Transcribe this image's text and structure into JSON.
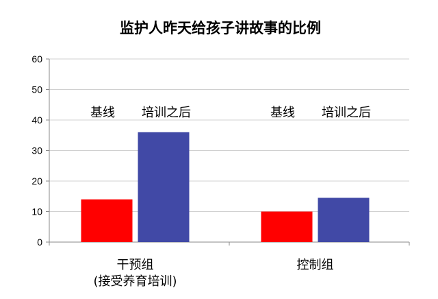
{
  "chart_data": {
    "type": "bar",
    "title": "监护人昨天给孩子讲故事的比例",
    "categories": [
      {
        "line1": "干预组",
        "line2": "(接受养育培训)"
      },
      {
        "line1": "控制组",
        "line2": ""
      }
    ],
    "series": [
      {
        "name": "基线",
        "values": [
          14,
          10
        ],
        "color": "#ff0000"
      },
      {
        "name": "培训之后",
        "values": [
          36,
          14.5
        ],
        "color": "#4149a6"
      }
    ],
    "ylim": [
      0,
      60
    ],
    "yticks": [
      0,
      10,
      20,
      30,
      40,
      50,
      60
    ],
    "grid": true,
    "legend": "above-bars"
  }
}
